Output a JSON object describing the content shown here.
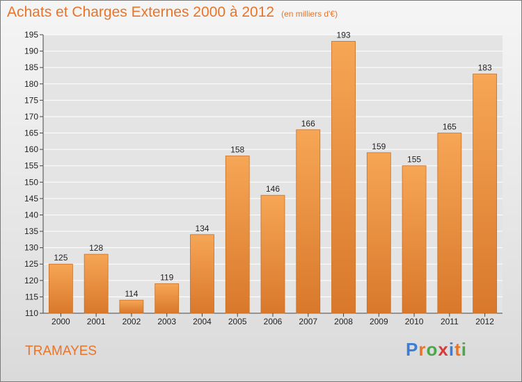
{
  "title": "Achats et Charges Externes 2000 à 2012",
  "subtitle": "(en milliers d'€)",
  "place": "TRAMAYES",
  "logo": {
    "letters": [
      "P",
      "r",
      "o",
      "x",
      "i",
      "t",
      "i"
    ],
    "colors": [
      "#3a7fd5",
      "#e8742a",
      "#4ca64c",
      "#d63a3a",
      "#3a7fd5",
      "#e8742a",
      "#4ca64c"
    ]
  },
  "colors": {
    "bar_light": "#f6a655",
    "bar_dark": "#d9782b",
    "bar_edge": "#c96e22",
    "grid": "#ffffff",
    "text_accent": "#e8742a"
  },
  "chart_data": {
    "type": "bar",
    "categories": [
      "2000",
      "2001",
      "2002",
      "2003",
      "2004",
      "2005",
      "2006",
      "2007",
      "2008",
      "2009",
      "2010",
      "2011",
      "2012"
    ],
    "values": [
      125,
      128,
      114,
      119,
      134,
      158,
      146,
      166,
      193,
      159,
      155,
      165,
      183
    ],
    "xlabel": "",
    "ylabel": "",
    "ylim": [
      110,
      195
    ],
    "yticks": [
      110,
      115,
      120,
      125,
      130,
      135,
      140,
      145,
      150,
      155,
      160,
      165,
      170,
      175,
      180,
      185,
      190,
      195
    ],
    "grid": true
  }
}
